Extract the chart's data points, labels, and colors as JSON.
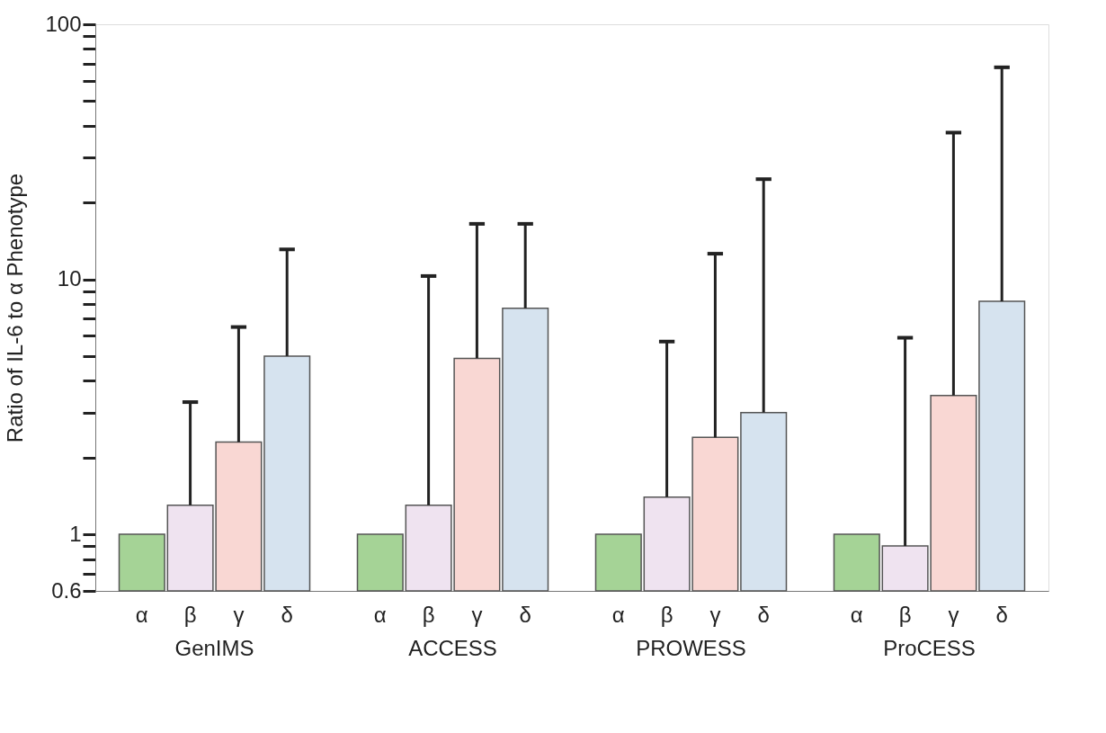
{
  "chart_data": {
    "type": "bar",
    "ylabel": "Ratio of IL-6 to α Phenotype",
    "categories": [
      "GenIMS",
      "ACCESS",
      "PROWESS",
      "ProCESS"
    ],
    "series": [
      {
        "name": "α",
        "color": "#a5d396",
        "values": [
          1,
          1,
          1,
          1
        ],
        "errors": [
          null,
          null,
          null,
          null
        ]
      },
      {
        "name": "β",
        "color": "#efe3f0",
        "values": [
          1.3,
          1.3,
          1.4,
          0.9
        ],
        "errors": [
          [
            1.3,
            3.3
          ],
          [
            1.3,
            10.3
          ],
          [
            1.4,
            5.7
          ],
          [
            0.9,
            5.9
          ]
        ]
      },
      {
        "name": "γ",
        "color": "#f9d7d3",
        "values": [
          2.3,
          4.9,
          2.4,
          3.5
        ],
        "errors": [
          [
            2.3,
            6.5
          ],
          [
            4.9,
            16.5
          ],
          [
            2.4,
            12.6
          ],
          [
            3.5,
            37.6
          ]
        ]
      },
      {
        "name": "δ",
        "color": "#d6e3ef",
        "values": [
          5,
          7.7,
          3,
          8.2
        ],
        "errors": [
          [
            5,
            13.1
          ],
          [
            7.7,
            16.5
          ],
          [
            3,
            24.7
          ],
          [
            8.2,
            67.8
          ]
        ]
      }
    ],
    "log": true,
    "ylim": [
      0.6,
      100
    ],
    "yticks": [
      0.6,
      {
        "value": 0.7,
        "label": null
      },
      {
        "value": 0.8,
        "label": null
      },
      {
        "value": 0.9,
        "label": null
      },
      1,
      {
        "value": 2,
        "label": null
      },
      {
        "value": 3,
        "label": null
      },
      {
        "value": 4,
        "label": null
      },
      {
        "value": 5,
        "label": null
      },
      {
        "value": 6,
        "label": null
      },
      {
        "value": 7,
        "label": null
      },
      {
        "value": 8,
        "label": null
      },
      {
        "value": 9,
        "label": null
      },
      10,
      {
        "value": 20,
        "label": null
      },
      {
        "value": 30,
        "label": null
      },
      {
        "value": 40,
        "label": null
      },
      {
        "value": 50,
        "label": null
      },
      {
        "value": 60,
        "label": null
      },
      {
        "value": 70,
        "label": null
      },
      {
        "value": 80,
        "label": null
      },
      {
        "value": 90,
        "label": null
      },
      100
    ],
    "grid": false,
    "legend": false
  }
}
